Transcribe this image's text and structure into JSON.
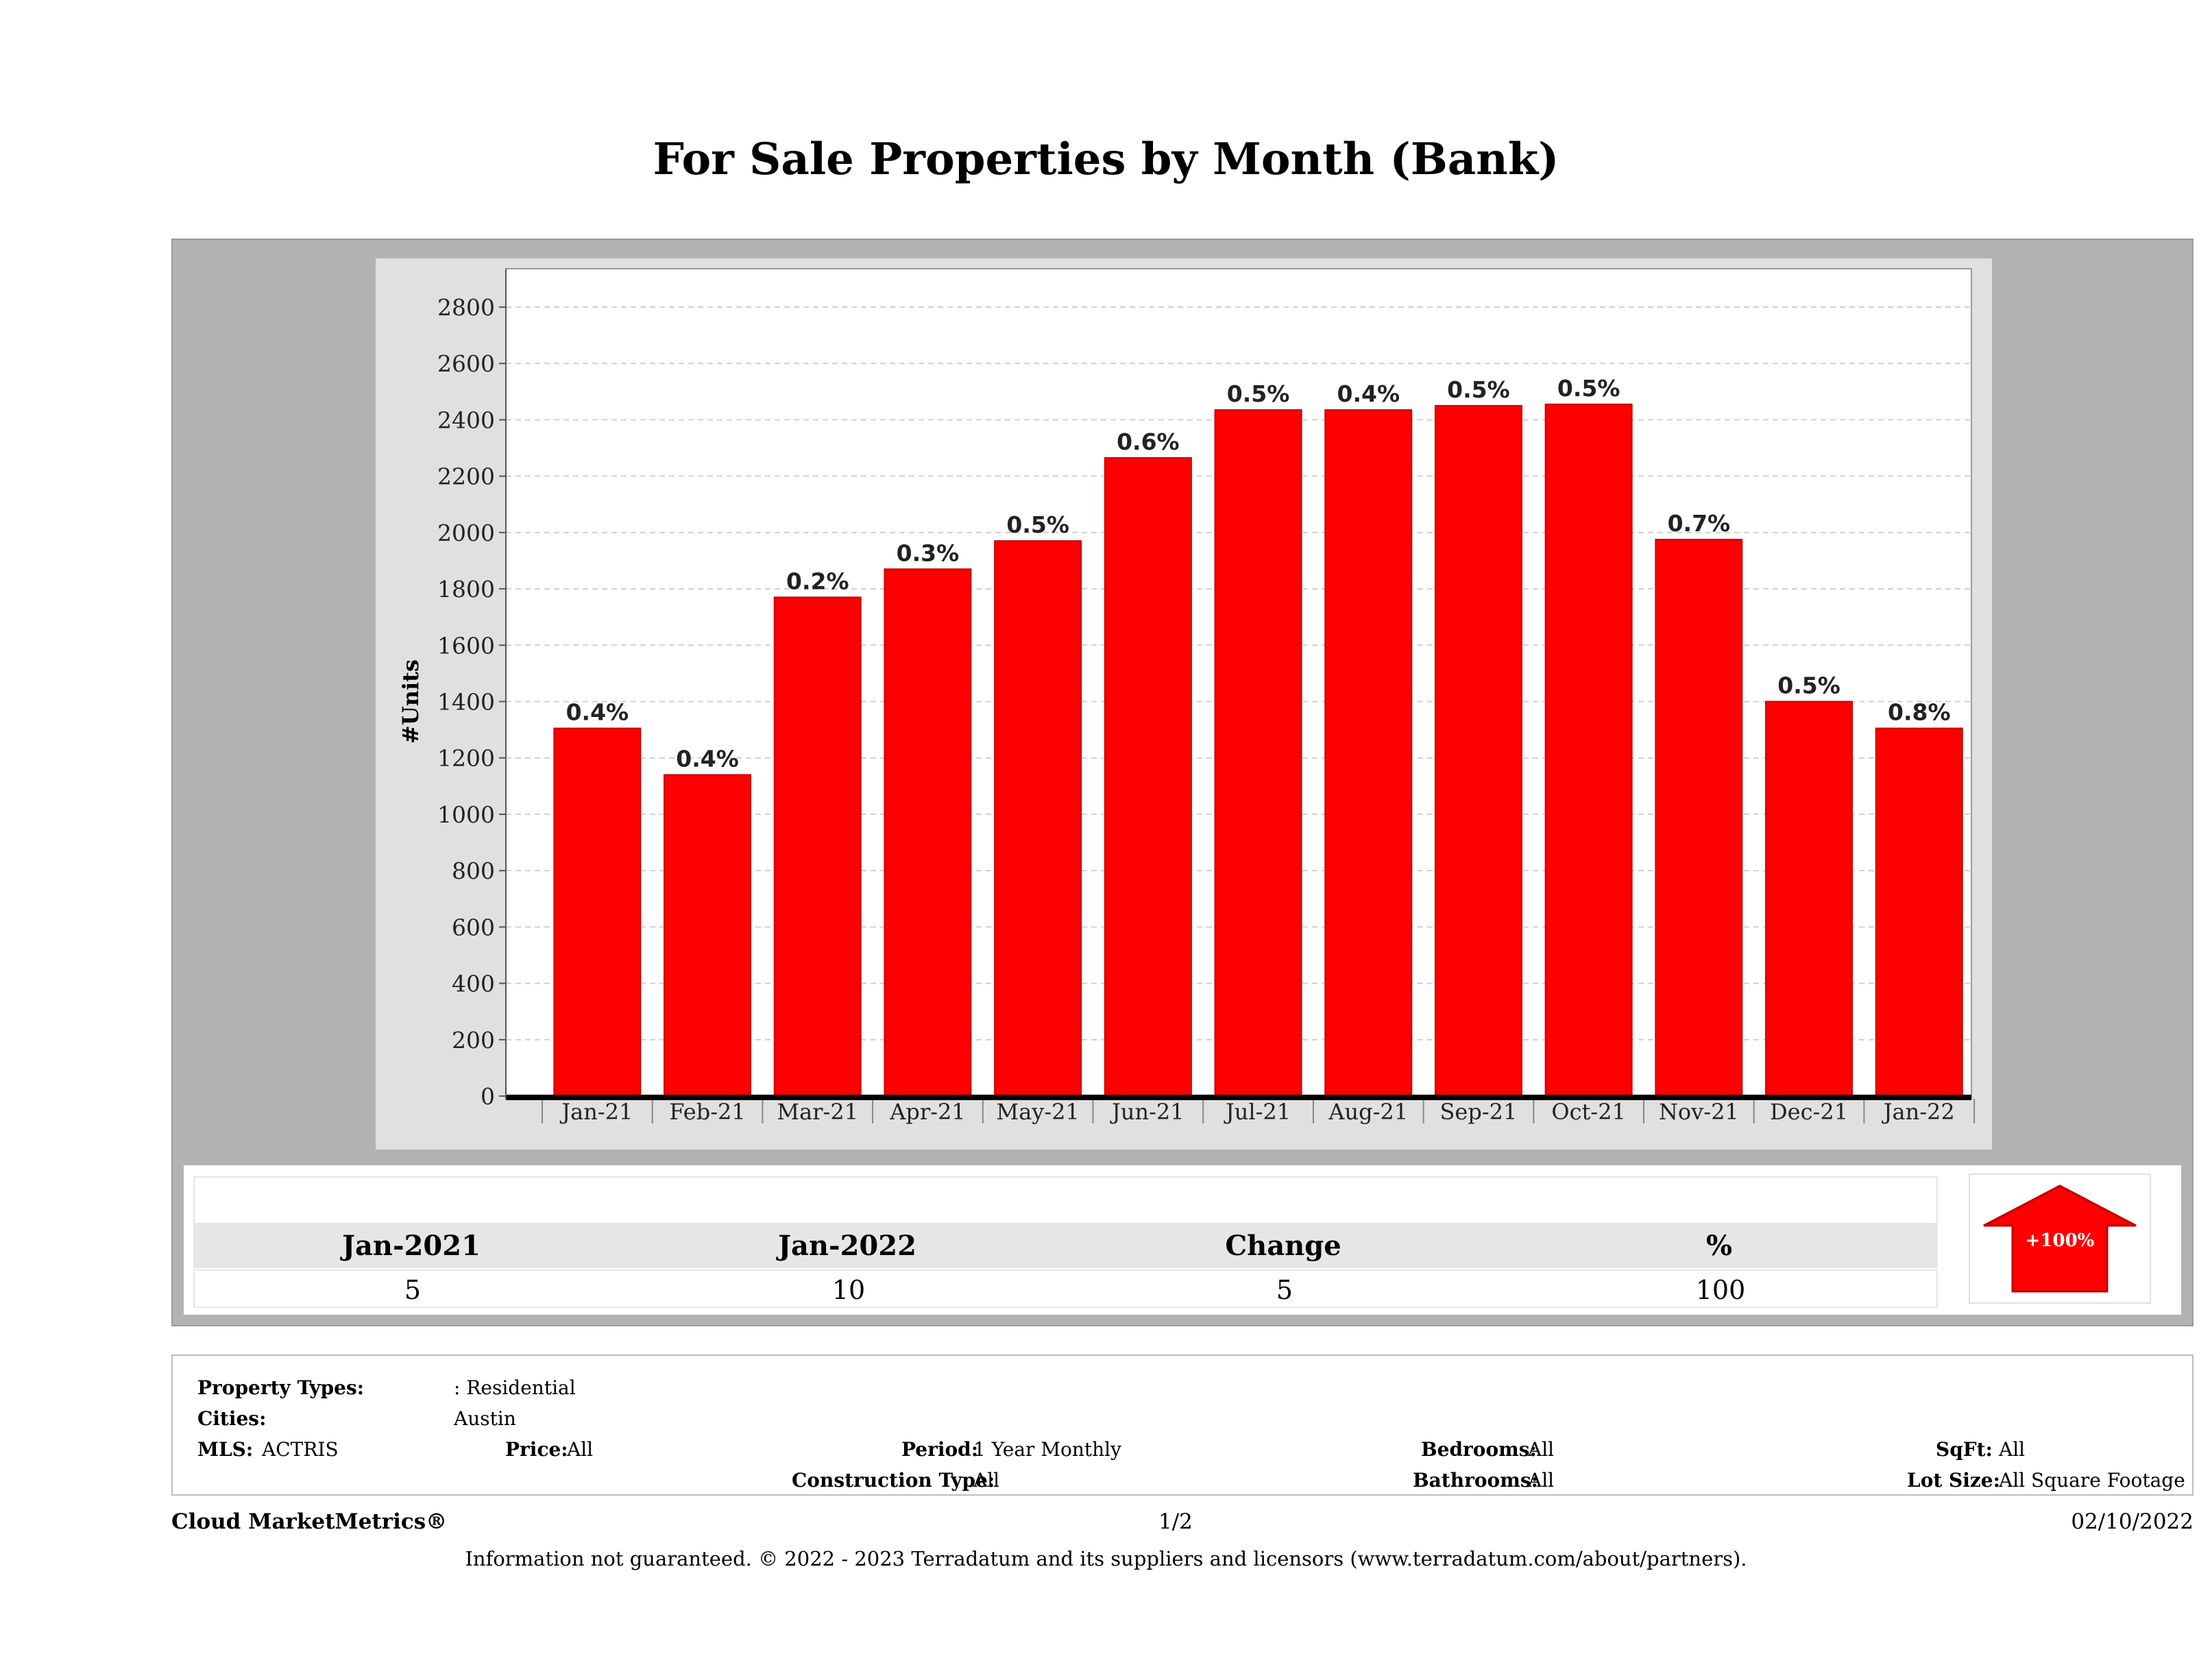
{
  "page": {
    "title": "For Sale Properties by Month (Bank)"
  },
  "chart_data": {
    "type": "bar",
    "ylabel": "#Units",
    "xlabel": "",
    "ylim": [
      0,
      2800
    ],
    "yticks": [
      0,
      200,
      400,
      600,
      800,
      1000,
      1200,
      1400,
      1600,
      1800,
      2000,
      2200,
      2400,
      2600,
      2800
    ],
    "categories": [
      "Jan-21",
      "Feb-21",
      "Mar-21",
      "Apr-21",
      "May-21",
      "Jun-21",
      "Jul-21",
      "Aug-21",
      "Sep-21",
      "Oct-21",
      "Nov-21",
      "Dec-21",
      "Jan-22"
    ],
    "values": [
      1305,
      1140,
      1770,
      1870,
      1970,
      2265,
      2435,
      2435,
      2450,
      2455,
      1975,
      1400,
      1305
    ],
    "data_labels": [
      "0.4%",
      "0.4%",
      "0.2%",
      "0.3%",
      "0.5%",
      "0.6%",
      "0.5%",
      "0.4%",
      "0.5%",
      "0.5%",
      "0.7%",
      "0.5%",
      "0.8%"
    ],
    "bar_color": "#ff0000",
    "grid": true
  },
  "stats": {
    "headers": [
      "Jan-2021",
      "Jan-2022",
      "Change",
      "%"
    ],
    "values": [
      "5",
      "10",
      "5",
      "100"
    ],
    "badge": "+100%",
    "badge_color": "#ff0000"
  },
  "filters": {
    "property_types_label": "Property Types:",
    "property_types_value": ": Residential",
    "cities_label": "Cities:",
    "cities_value": "Austin",
    "mls_label": "MLS:",
    "mls_value": "ACTRIS",
    "price_label": "Price:",
    "price_value": "All",
    "period_label": "Period:",
    "period_value": "1 Year Monthly",
    "bedrooms_label": "Bedrooms:",
    "bedrooms_value": "All",
    "sqft_label": "SqFt:",
    "sqft_value": "All",
    "construction_label": "Construction Type:",
    "construction_value": "All",
    "bathrooms_label": "Bathrooms:",
    "bathrooms_value": "All",
    "lot_label": "Lot Size:",
    "lot_value": "All Square Footage"
  },
  "footer": {
    "brand": "Cloud MarketMetrics®",
    "page": "1/2",
    "date": "02/10/2022",
    "disclaimer": "Information not guaranteed. © 2022 - 2023 Terradatum and its suppliers and licensors (www.terradatum.com/about/partners)."
  }
}
